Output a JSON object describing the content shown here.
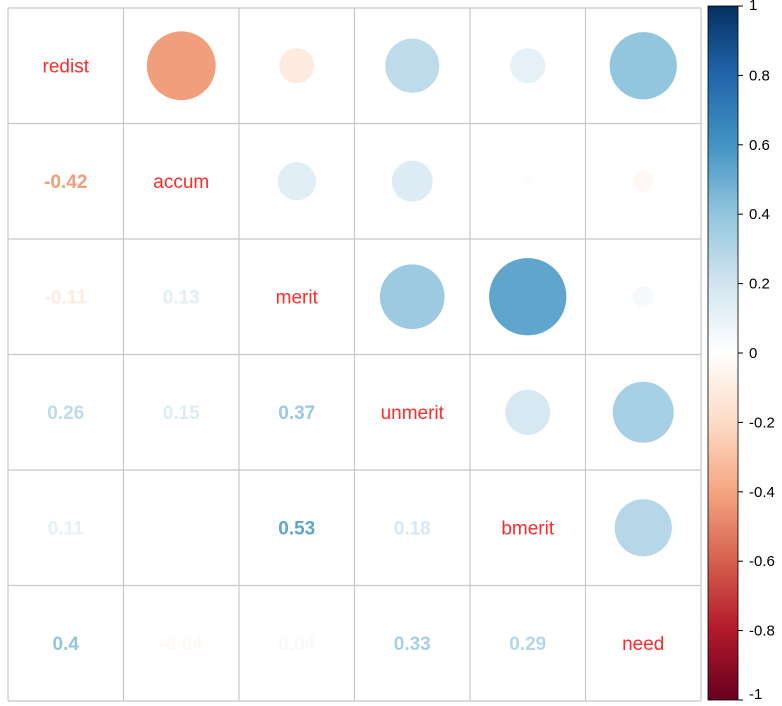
{
  "chart_data": {
    "type": "heatmap",
    "subtype": "correlation-matrix-mixed",
    "upper_method": "circle",
    "lower_method": "number",
    "variables": [
      "redist",
      "accum",
      "merit",
      "unmerit",
      "bmerit",
      "need"
    ],
    "matrix": [
      [
        1.0,
        -0.42,
        -0.11,
        0.26,
        0.11,
        0.4
      ],
      [
        -0.42,
        1.0,
        0.13,
        0.15,
        -0.01,
        -0.04
      ],
      [
        -0.11,
        0.13,
        1.0,
        0.37,
        0.53,
        0.04
      ],
      [
        0.26,
        0.15,
        0.37,
        1.0,
        0.18,
        0.33
      ],
      [
        0.11,
        -0.01,
        0.53,
        0.18,
        1.0,
        0.29
      ],
      [
        0.4,
        -0.04,
        0.04,
        0.33,
        0.29,
        1.0
      ]
    ],
    "lower_labels": [
      [
        "-0.42"
      ],
      [
        "-0.11",
        "0.13"
      ],
      [
        "0.26",
        "0.15",
        "0.37"
      ],
      [
        "0.11",
        "-0.01",
        "0.53",
        "0.18"
      ],
      [
        "0.4",
        "-0.04",
        "0.04",
        "0.33",
        "0.29"
      ]
    ],
    "colorbar": {
      "ticks": [
        "1",
        "0.8",
        "0.6",
        "0.4",
        "0.2",
        "0",
        "-0.2",
        "-0.4",
        "-0.6",
        "-0.8",
        "-1"
      ],
      "range": [
        -1,
        1
      ]
    },
    "label_color": "#ff2a2a",
    "palette": [
      "#67001f",
      "#b2182b",
      "#d6604d",
      "#f4a582",
      "#fddbc7",
      "#ffffff",
      "#d1e5f0",
      "#92c5de",
      "#4393c3",
      "#2166ac",
      "#053061"
    ]
  }
}
